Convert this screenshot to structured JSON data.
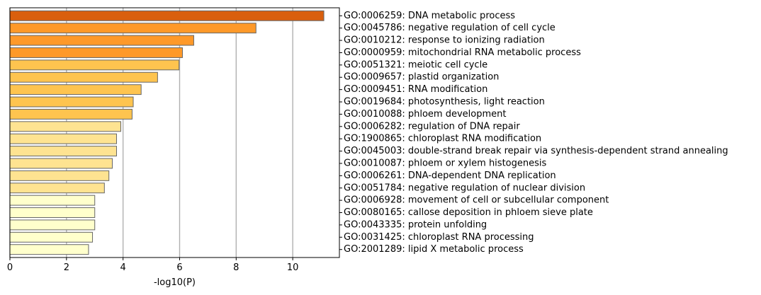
{
  "chart_data": {
    "type": "bar",
    "orientation": "horizontal",
    "categories": [
      "GO:0006259: DNA metabolic process",
      "GO:0045786: negative regulation of cell cycle",
      "GO:0010212: response to ionizing radiation",
      "GO:0000959: mitochondrial RNA metabolic process",
      "GO:0051321: meiotic cell cycle",
      "GO:0009657: plastid organization",
      "GO:0009451: RNA modification",
      "GO:0019684: photosynthesis, light reaction",
      "GO:0010088: phloem development",
      "GO:0006282: regulation of DNA repair",
      "GO:1900865: chloroplast RNA modification",
      "GO:0045003: double-strand break repair via synthesis-dependent strand annealing",
      "GO:0010087: phloem or xylem histogenesis",
      "GO:0006261: DNA-dependent DNA replication",
      "GO:0051784: negative regulation of nuclear division",
      "GO:0006928: movement of cell or subcellular component",
      "GO:0080165: callose deposition in phloem sieve plate",
      "GO:0043335: protein unfolding",
      "GO:0031425: chloroplast RNA processing",
      "GO:2001289: lipid X metabolic process"
    ],
    "values": [
      11.1,
      8.7,
      6.5,
      6.1,
      5.98,
      5.22,
      4.64,
      4.36,
      4.32,
      3.92,
      3.77,
      3.77,
      3.62,
      3.5,
      3.34,
      3.0,
      3.0,
      3.0,
      2.92,
      2.78
    ],
    "colors": [
      "#d95f0e",
      "#fe9929",
      "#fe9929",
      "#fe9929",
      "#fec44f",
      "#fec44f",
      "#fec44f",
      "#fec44f",
      "#fec44f",
      "#fee391",
      "#fee391",
      "#fee391",
      "#fee391",
      "#fee391",
      "#fee391",
      "#ffffcc",
      "#ffffcc",
      "#ffffcc",
      "#ffffcc",
      "#ffffcc"
    ],
    "bar_edge_color": "#666666",
    "grid_color": "#b0b0b0",
    "xlabel": "-log10(P)",
    "ylabel": "",
    "title": "",
    "xlim": [
      0,
      11.65
    ],
    "xticks": [
      0,
      2,
      4,
      6,
      8,
      10
    ],
    "grid": true,
    "grid_axis": "x"
  }
}
